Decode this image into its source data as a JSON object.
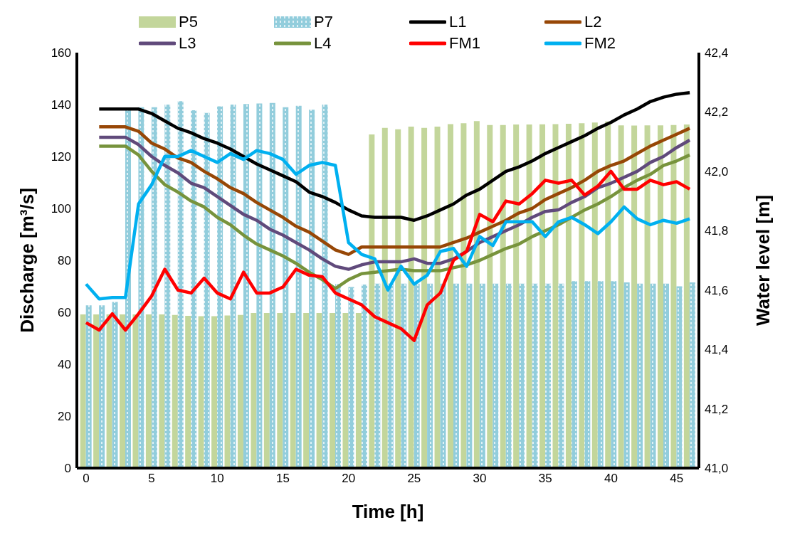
{
  "chart_data": {
    "type": "bar",
    "xlabel": "Time [h]",
    "ylabel": "Discharge [m³/s]",
    "y2label": "Water level [m]",
    "x": [
      0,
      1,
      2,
      3,
      4,
      5,
      6,
      7,
      8,
      9,
      10,
      11,
      12,
      13,
      14,
      15,
      16,
      17,
      18,
      19,
      20,
      21,
      22,
      23,
      24,
      25,
      26,
      27,
      28,
      29,
      30,
      31,
      32,
      33,
      34,
      35,
      36,
      37,
      38,
      39,
      40,
      41,
      42,
      43,
      44,
      45,
      46
    ],
    "xlim": [
      -0.7,
      46.7
    ],
    "xticks": [
      0,
      5,
      10,
      15,
      20,
      25,
      30,
      35,
      40,
      45
    ],
    "ylim": [
      0,
      160
    ],
    "yticks": [
      0,
      20,
      40,
      60,
      80,
      100,
      120,
      140,
      160
    ],
    "y2lim": [
      41,
      42.4
    ],
    "y2ticks": [
      {
        "value": 41,
        "label": "41,0"
      },
      {
        "value": 41.2,
        "label": "41,2"
      },
      {
        "value": 41.4,
        "label": "41,4"
      },
      {
        "value": 41.6,
        "label": "41,6"
      },
      {
        "value": 41.8,
        "label": "41,8"
      },
      {
        "value": 42,
        "label": "42,0"
      },
      {
        "value": 42.2,
        "label": "42,2"
      },
      {
        "value": 42.4,
        "label": "42,4"
      }
    ],
    "grid": false,
    "legend": "top",
    "marker": "none",
    "line_style": "solid",
    "series": [
      {
        "name": "P5",
        "color": "#c3d69b",
        "values": [
          59.2,
          59.2,
          59.2,
          59.2,
          59.2,
          59.2,
          59.2,
          59,
          58.6,
          58.5,
          58.5,
          58.8,
          59,
          59.7,
          59.7,
          59.7,
          59.7,
          59.7,
          59.7,
          59.7,
          59.7,
          59.7,
          128.5,
          131,
          130.5,
          131.5,
          131,
          131.5,
          132.5,
          132.8,
          133.6,
          132.1,
          132.1,
          132.3,
          132.3,
          132.4,
          132.5,
          132.6,
          132.8,
          133.1,
          133.5,
          132,
          131.9,
          132,
          132,
          132.1,
          132.3
        ]
      },
      {
        "name": "P7",
        "color": "#92cddc",
        "values": [
          62.7,
          62.7,
          64,
          137.8,
          139,
          139,
          140,
          141.3,
          137.8,
          136.8,
          139.3,
          140,
          140.2,
          140.4,
          140.6,
          139,
          139.5,
          138,
          140,
          70.9,
          69.7,
          70.7,
          71,
          71,
          71,
          71,
          71,
          71,
          71,
          71,
          71,
          71,
          71,
          71,
          71,
          71,
          71,
          72,
          72,
          72,
          72,
          71.5,
          71,
          71,
          71,
          70,
          71.5
        ]
      },
      {
        "name": "L1",
        "type": "line",
        "axis": "y2",
        "color": "#000000",
        "values": [
          null,
          42.21,
          42.21,
          42.21,
          42.21,
          42.195,
          42.17,
          42.145,
          42.13,
          42.11,
          42.095,
          42.075,
          42.05,
          42.025,
          42.005,
          41.985,
          41.965,
          41.93,
          41.915,
          41.895,
          41.87,
          41.85,
          41.845,
          41.845,
          41.845,
          41.835,
          41.85,
          41.87,
          41.89,
          41.92,
          41.94,
          41.97,
          42.0,
          42.015,
          42.035,
          42.06,
          42.08,
          42.1,
          42.12,
          42.145,
          42.165,
          42.19,
          42.21,
          42.235,
          42.25,
          42.26,
          42.265
        ]
      },
      {
        "name": "L2",
        "type": "line",
        "axis": "y2",
        "color": "#974706",
        "values": [
          null,
          42.15,
          42.15,
          42.15,
          42.135,
          42.095,
          42.075,
          42.045,
          42.03,
          42.0,
          41.975,
          41.945,
          41.925,
          41.895,
          41.87,
          41.845,
          41.815,
          41.795,
          41.765,
          41.735,
          41.72,
          41.745,
          41.745,
          41.745,
          41.745,
          41.745,
          41.745,
          41.745,
          41.76,
          41.775,
          41.795,
          41.815,
          41.835,
          41.86,
          41.875,
          41.905,
          41.925,
          41.945,
          41.97,
          42.0,
          42.02,
          42.035,
          42.06,
          42.085,
          42.105,
          42.125,
          42.145
        ]
      },
      {
        "name": "L3",
        "type": "line",
        "axis": "y2",
        "color": "#604a7b",
        "values": [
          null,
          42.115,
          42.115,
          42.115,
          42.09,
          42.05,
          42.02,
          41.995,
          41.96,
          41.945,
          41.915,
          41.885,
          41.855,
          41.835,
          41.805,
          41.785,
          41.76,
          41.735,
          41.705,
          41.68,
          41.67,
          41.685,
          41.695,
          41.695,
          41.695,
          41.705,
          41.69,
          41.69,
          41.705,
          41.73,
          41.76,
          41.78,
          41.8,
          41.82,
          41.845,
          41.865,
          41.87,
          41.895,
          41.915,
          41.945,
          41.96,
          41.98,
          42.0,
          42.03,
          42.05,
          42.08,
          42.105
        ]
      },
      {
        "name": "L4",
        "type": "line",
        "axis": "y2",
        "color": "#77933c",
        "values": [
          null,
          42.085,
          42.085,
          42.085,
          42.055,
          42.0,
          41.955,
          41.93,
          41.9,
          41.88,
          41.845,
          41.82,
          41.785,
          41.755,
          41.735,
          41.715,
          41.69,
          41.66,
          41.635,
          41.605,
          41.635,
          41.655,
          41.66,
          41.665,
          41.67,
          41.665,
          41.665,
          41.665,
          41.675,
          41.685,
          41.7,
          41.72,
          41.74,
          41.755,
          41.78,
          41.8,
          41.82,
          41.845,
          41.87,
          41.89,
          41.915,
          41.945,
          41.97,
          41.99,
          42.02,
          42.035,
          42.055
        ]
      },
      {
        "name": "FM1",
        "type": "line",
        "axis": "y2",
        "color": "#ff0000",
        "values": [
          41.49,
          41.465,
          41.52,
          41.465,
          41.52,
          41.58,
          41.67,
          41.6,
          41.59,
          41.64,
          41.59,
          41.57,
          41.66,
          41.59,
          41.59,
          41.61,
          41.67,
          41.65,
          41.645,
          41.59,
          41.57,
          41.55,
          41.51,
          41.49,
          41.47,
          41.43,
          41.55,
          41.59,
          41.7,
          41.73,
          41.855,
          41.83,
          41.9,
          41.89,
          41.925,
          41.97,
          41.96,
          41.97,
          41.92,
          41.95,
          42.0,
          41.94,
          41.94,
          41.97,
          41.955,
          41.965,
          41.94
        ]
      },
      {
        "name": "FM2",
        "type": "line",
        "axis": "y2",
        "color": "#00b0f0",
        "values": [
          41.62,
          41.57,
          41.575,
          41.575,
          41.89,
          41.955,
          42.05,
          42.05,
          42.07,
          42.05,
          42.03,
          42.06,
          42.04,
          42.07,
          42.06,
          42.04,
          41.99,
          42.02,
          42.03,
          42.02,
          41.76,
          41.72,
          41.705,
          41.6,
          41.68,
          41.62,
          41.65,
          41.73,
          41.74,
          41.68,
          41.78,
          41.75,
          41.83,
          41.83,
          41.83,
          41.78,
          41.83,
          41.845,
          41.82,
          41.79,
          41.83,
          41.88,
          41.84,
          41.82,
          41.835,
          41.825,
          41.84
        ]
      }
    ]
  }
}
